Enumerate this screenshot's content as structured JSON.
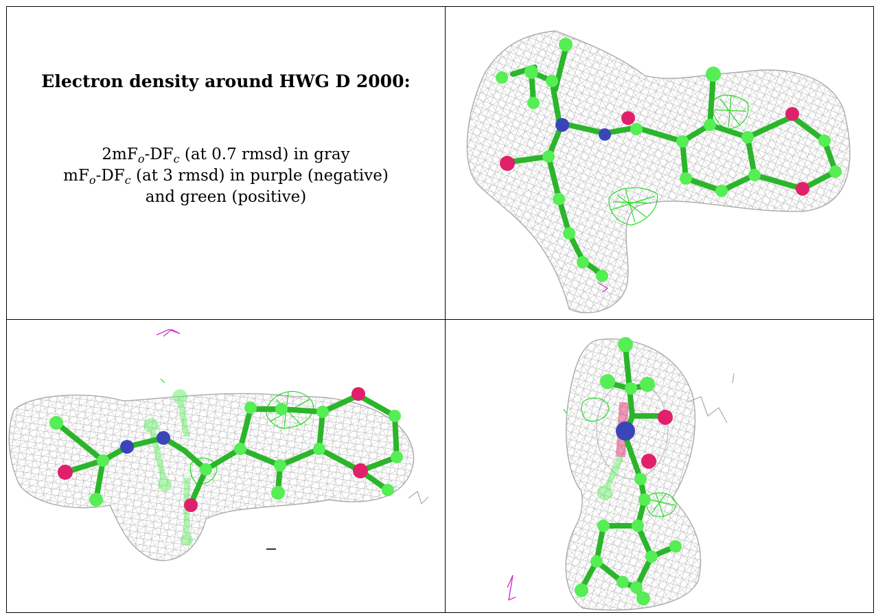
{
  "caption": {
    "title": "Electron density around HWG D 2000:",
    "line1": {
      "prefix": "2mF",
      "sub1": "o",
      "mid": "-DF",
      "sub2": "c",
      "suffix": " (at 0.7 rmsd) in gray"
    },
    "line2": {
      "prefix": "mF",
      "sub1": "o",
      "mid": "-DF",
      "sub2": "c",
      "suffix": " (at 3 rmsd) in purple (negative)"
    },
    "line3": "and green (positive)"
  },
  "colors": {
    "mesh": "#a9a9a9",
    "carbon": "#55ee55",
    "carbon_dark": "#2bb52b",
    "nitrogen": "#3a46b8",
    "oxygen": "#e0206a",
    "positive_density": "#22dd22",
    "negative_density": "#cc33cc"
  },
  "views": [
    {
      "name": "view-top-right"
    },
    {
      "name": "view-bottom-left"
    },
    {
      "name": "view-bottom-right"
    }
  ]
}
